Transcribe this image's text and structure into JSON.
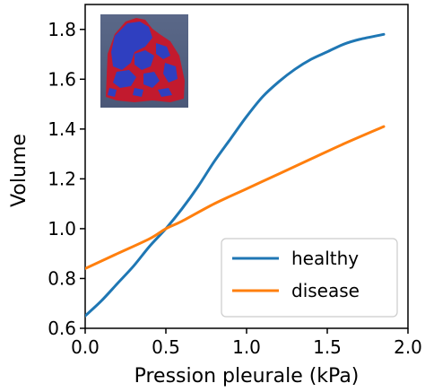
{
  "chart_data": {
    "type": "line",
    "title": "",
    "xlabel": "Pression pleurale (kPa)",
    "ylabel": "Volume",
    "xlim": [
      0.0,
      2.0
    ],
    "ylim": [
      0.6,
      1.9
    ],
    "xticks": [
      0.0,
      0.5,
      1.0,
      1.5,
      2.0
    ],
    "xtick_labels": [
      "0.0",
      "0.5",
      "1.0",
      "1.5",
      "2.0"
    ],
    "yticks": [
      0.6,
      0.8,
      1.0,
      1.2,
      1.4,
      1.6,
      1.8
    ],
    "ytick_labels": [
      "0.6",
      "0.8",
      "1.0",
      "1.2",
      "1.4",
      "1.6",
      "1.8"
    ],
    "grid": false,
    "legend_position": "bottom-right",
    "inset": "lung-render-image",
    "series": [
      {
        "name": "healthy",
        "color": "#1f77b4",
        "x": [
          0.0,
          0.1,
          0.2,
          0.3,
          0.4,
          0.5,
          0.6,
          0.7,
          0.8,
          0.9,
          1.0,
          1.1,
          1.2,
          1.3,
          1.4,
          1.5,
          1.6,
          1.7,
          1.85
        ],
        "y": [
          0.65,
          0.71,
          0.78,
          0.85,
          0.93,
          1.0,
          1.08,
          1.17,
          1.27,
          1.36,
          1.45,
          1.53,
          1.59,
          1.64,
          1.68,
          1.71,
          1.74,
          1.76,
          1.78
        ]
      },
      {
        "name": "disease",
        "color": "#ff7f0e",
        "x": [
          0.0,
          0.2,
          0.4,
          0.5,
          0.6,
          0.8,
          1.0,
          1.2,
          1.4,
          1.6,
          1.85
        ],
        "y": [
          0.84,
          0.9,
          0.96,
          1.0,
          1.03,
          1.1,
          1.16,
          1.22,
          1.28,
          1.34,
          1.41
        ]
      }
    ]
  }
}
